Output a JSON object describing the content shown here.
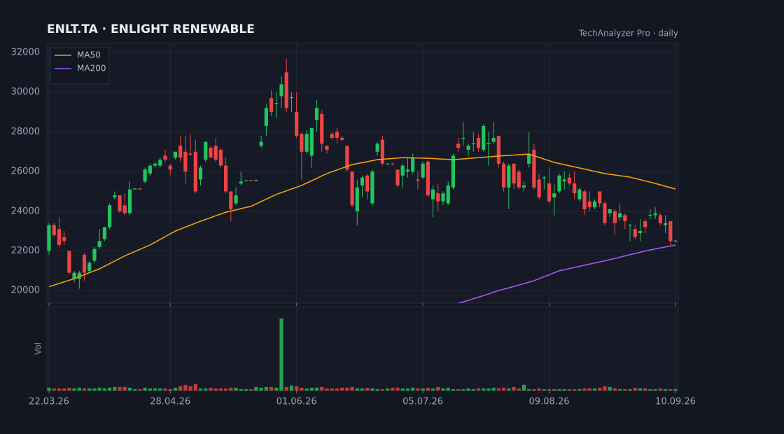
{
  "chart_data": {
    "type": "candlestick",
    "title": "ENLT.TA  ·  ENLIGHT RENEWABLE",
    "subtitle": "TechAnalyzer Pro · daily",
    "volume_label": "Vol",
    "legend": "upper left",
    "grid": true,
    "up_color": "#22c55e",
    "down_color": "#ef4444",
    "ylim": [
      19370,
      32460
    ],
    "yticks": [
      20000,
      22000,
      24000,
      26000,
      28000,
      30000,
      32000
    ],
    "xticks": [
      "22.03.26",
      "28.04.26",
      "01.06.26",
      "05.07.26",
      "09.08.26",
      "10.09.26"
    ],
    "x": [
      "22.03.26",
      "23.03.26",
      "24.03.26",
      "25.03.26",
      "26.03.26",
      "29.03.26",
      "30.03.26",
      "31.03.26",
      "01.04.26",
      "05.04.26",
      "06.04.26",
      "07.04.26",
      "12.04.26",
      "13.04.26",
      "14.04.26",
      "15.04.26",
      "16.04.26",
      "19.04.26",
      "20.04.26",
      "21.04.26",
      "22.04.26",
      "23.04.26",
      "26.04.26",
      "27.04.26",
      "28.04.26",
      "29.04.26",
      "30.04.26",
      "01.05.26",
      "03.05.26",
      "04.05.26",
      "05.05.26",
      "06.05.26",
      "07.05.26",
      "10.05.26",
      "11.05.26",
      "12.05.26",
      "13.05.26",
      "14.05.26",
      "17.05.26",
      "18.05.26",
      "19.05.26",
      "20.05.26",
      "21.05.26",
      "24.05.26",
      "25.05.26",
      "26.05.26",
      "27.05.26",
      "28.05.26",
      "31.05.26",
      "01.06.26",
      "02.06.26",
      "03.06.26",
      "04.06.26",
      "05.06.26",
      "07.06.26",
      "08.06.26",
      "09.06.26",
      "10.06.26",
      "11.06.26",
      "14.06.26",
      "15.06.26",
      "16.06.26",
      "17.06.26",
      "18.06.26",
      "21.06.26",
      "22.06.26",
      "23.06.26",
      "24.06.26",
      "25.06.26",
      "28.06.26",
      "29.06.26",
      "30.06.26",
      "01.07.26",
      "02.07.26",
      "05.07.26",
      "06.07.26",
      "07.07.26",
      "08.07.26",
      "09.07.26",
      "12.07.26",
      "13.07.26",
      "14.07.26",
      "15.07.26",
      "16.07.26",
      "19.07.26",
      "20.07.26",
      "21.07.26",
      "22.07.26",
      "23.07.26",
      "26.07.26",
      "27.07.26",
      "28.07.26",
      "29.07.26",
      "30.07.26",
      "02.08.26",
      "03.08.26",
      "04.08.26",
      "05.08.26",
      "06.08.26",
      "09.08.26",
      "10.08.26",
      "11.08.26",
      "12.08.26",
      "13.08.26",
      "16.08.26",
      "17.08.26",
      "18.08.26",
      "19.08.26",
      "20.08.26",
      "23.08.26",
      "24.08.26",
      "25.08.26",
      "26.08.26",
      "27.08.26",
      "30.08.26",
      "31.08.26",
      "01.09.26",
      "02.09.26",
      "03.09.26",
      "04.09.26",
      "06.09.26",
      "07.09.26",
      "08.09.26",
      "09.09.26",
      "10.09.26"
    ],
    "open": [
      22000,
      23300,
      23100,
      22700,
      22000,
      20600,
      20600,
      21800,
      21000,
      21500,
      22200,
      22600,
      23200,
      24700,
      24800,
      24300,
      23900,
      25100,
      25150,
      25500,
      25900,
      26300,
      26300,
      26800,
      26300,
      26700,
      27300,
      27000,
      26900,
      27000,
      25600,
      26600,
      27200,
      27300,
      27100,
      26300,
      25000,
      24400,
      25400,
      25550,
      25560,
      25550,
      27300,
      28300,
      29700,
      29400,
      29800,
      31000,
      29700,
      29000,
      27900,
      27000,
      26800,
      28600,
      28900,
      27300,
      27900,
      28000,
      27700,
      27300,
      26000,
      24000,
      25300,
      25800,
      24400,
      27000,
      27600,
      26400,
      26400,
      26100,
      25800,
      26000,
      26000,
      25600,
      25700,
      26500,
      24600,
      24900,
      24500,
      24400,
      25200,
      27400,
      27650,
      27100,
      27400,
      27700,
      27100,
      27400,
      27500,
      27800,
      26400,
      25200,
      26400,
      26000,
      25200,
      26400,
      27100,
      25600,
      25650,
      25400,
      24700,
      25000,
      25500,
      25700,
      25400,
      24600,
      25000,
      24500,
      24200,
      25000,
      24400,
      23900,
      24000,
      23700,
      23800,
      23300,
      23100,
      22900,
      23500,
      23800,
      23800,
      23800,
      23300,
      23500,
      22500
    ],
    "high": [
      23400,
      23400,
      23700,
      23000,
      22000,
      21000,
      21000,
      21900,
      21500,
      22200,
      23100,
      23200,
      24400,
      25000,
      24800,
      24900,
      25500,
      25150,
      25150,
      26200,
      26400,
      26500,
      26700,
      27100,
      26400,
      27000,
      27800,
      27800,
      27900,
      27600,
      26300,
      27500,
      27300,
      27700,
      27200,
      26700,
      25000,
      25200,
      26000,
      25580,
      25580,
      25600,
      27800,
      29400,
      30100,
      30000,
      30800,
      31700,
      30000,
      30000,
      28000,
      28100,
      28200,
      29600,
      29100,
      27300,
      28000,
      28200,
      27800,
      27300,
      26000,
      25600,
      25800,
      25900,
      26100,
      27500,
      27800,
      26420,
      26450,
      26100,
      26400,
      26700,
      26900,
      26000,
      26500,
      26600,
      25300,
      25400,
      25000,
      25500,
      26900,
      27700,
      28500,
      27400,
      28000,
      27900,
      28400,
      28000,
      28500,
      27800,
      26500,
      26400,
      26400,
      26100,
      25500,
      28000,
      27400,
      25900,
      25800,
      26200,
      25400,
      25900,
      26000,
      25900,
      26000,
      25200,
      25100,
      25000,
      24600,
      25000,
      24500,
      24100,
      24100,
      24400,
      23900,
      23350,
      23300,
      23600,
      23600,
      24100,
      24200,
      23900,
      23800,
      23500,
      22550
    ],
    "low": [
      21800,
      22700,
      22200,
      22300,
      20800,
      20400,
      20100,
      20500,
      20900,
      21400,
      22100,
      22500,
      23100,
      24600,
      23900,
      23800,
      23800,
      25100,
      25100,
      25400,
      25800,
      26200,
      26200,
      26500,
      25800,
      26600,
      26500,
      25400,
      26800,
      24900,
      25300,
      26500,
      26700,
      26500,
      26200,
      24900,
      23500,
      24300,
      25300,
      25540,
      25540,
      25500,
      27200,
      27800,
      28800,
      28700,
      29200,
      29000,
      29000,
      27700,
      25600,
      26900,
      26200,
      28000,
      27000,
      26900,
      27600,
      27400,
      27500,
      26000,
      24200,
      23300,
      24700,
      24600,
      24300,
      26800,
      26300,
      26380,
      26350,
      25200,
      25200,
      25700,
      25900,
      25100,
      25600,
      24700,
      23700,
      24000,
      24300,
      24300,
      25100,
      27000,
      27300,
      26800,
      27000,
      27000,
      27000,
      26300,
      27400,
      26200,
      25000,
      24100,
      25100,
      25100,
      25000,
      26200,
      25100,
      24600,
      25100,
      24400,
      23800,
      24900,
      25100,
      25300,
      24600,
      24500,
      23800,
      24000,
      24100,
      24200,
      23300,
      23700,
      22800,
      23500,
      23100,
      22500,
      22600,
      22500,
      22900,
      23600,
      23600,
      23300,
      22900,
      22300,
      22450
    ],
    "close": [
      23300,
      22800,
      22300,
      22500,
      20900,
      20900,
      20900,
      20900,
      21400,
      22100,
      22500,
      23200,
      24300,
      24800,
      24000,
      23900,
      25100,
      25150,
      25100,
      26100,
      26300,
      26400,
      26600,
      26600,
      26100,
      27000,
      26700,
      26000,
      26850,
      25000,
      26200,
      27500,
      26700,
      26600,
      26300,
      25000,
      24100,
      24800,
      25500,
      25560,
      25550,
      25560,
      27500,
      29200,
      29000,
      29450,
      30400,
      29200,
      29750,
      27800,
      27000,
      27900,
      28200,
      29200,
      27400,
      27100,
      27700,
      27700,
      27600,
      26100,
      24300,
      25200,
      25700,
      25000,
      26000,
      27400,
      26400,
      26400,
      26380,
      25300,
      26300,
      26100,
      26700,
      25550,
      26400,
      24800,
      25100,
      24500,
      24900,
      25300,
      26800,
      27200,
      27700,
      27300,
      27420,
      27200,
      28300,
      27450,
      27700,
      26400,
      25200,
      26300,
      25400,
      25200,
      25300,
      26900,
      25200,
      24700,
      25700,
      24500,
      24900,
      25800,
      25600,
      25400,
      24900,
      25100,
      24100,
      24200,
      24500,
      24400,
      23400,
      24100,
      23400,
      23900,
      23500,
      23320,
      22700,
      23000,
      23200,
      23820,
      23900,
      23400,
      23400,
      22500,
      22520
    ],
    "volume": [
      4,
      3,
      3,
      3,
      4,
      3,
      4,
      3,
      3,
      3,
      4,
      3,
      4,
      5,
      5,
      5,
      4,
      2,
      2,
      4,
      3,
      3,
      3,
      3,
      2,
      4,
      6,
      8,
      6,
      9,
      3,
      3,
      4,
      3,
      3,
      3,
      4,
      4,
      2,
      2,
      2,
      5,
      4,
      5,
      5,
      4,
      100,
      5,
      7,
      6,
      4,
      3,
      4,
      4,
      5,
      3,
      3,
      3,
      4,
      4,
      5,
      3,
      3,
      4,
      3,
      2,
      2,
      3,
      4,
      4,
      3,
      3,
      4,
      3,
      3,
      4,
      3,
      5,
      3,
      4,
      2,
      2,
      2,
      3,
      2,
      3,
      3,
      3,
      4,
      3,
      4,
      3,
      5,
      3,
      8,
      2,
      2,
      3,
      2,
      2,
      2,
      2,
      2,
      2,
      2,
      2,
      3,
      3,
      3,
      4,
      6,
      5,
      3,
      2,
      2,
      2,
      4,
      3,
      3,
      2,
      2,
      3,
      2,
      2,
      2
    ],
    "series": [
      {
        "name": "MA50",
        "color": "#f59e0b",
        "values": [
          20200,
          20280,
          20360,
          20440,
          20520,
          20600,
          20700,
          20800,
          20900,
          21000,
          21100,
          21230,
          21360,
          21490,
          21620,
          21750,
          21860,
          21970,
          22080,
          22190,
          22300,
          22440,
          22580,
          22720,
          22860,
          23000,
          23100,
          23200,
          23300,
          23400,
          23500,
          23590,
          23680,
          23770,
          23860,
          23950,
          24010,
          24070,
          24130,
          24190,
          24250,
          24370,
          24490,
          24610,
          24730,
          24850,
          24940,
          25030,
          25120,
          25210,
          25300,
          25420,
          25540,
          25660,
          25780,
          25900,
          25990,
          26080,
          26170,
          26260,
          26350,
          26400,
          26450,
          26500,
          26550,
          26600,
          26620,
          26640,
          26660,
          26680,
          26700,
          26694,
          26688,
          26682,
          26676,
          26670,
          26656,
          26642,
          26628,
          26614,
          26600,
          26620,
          26640,
          26660,
          26680,
          26700,
          26720,
          26740,
          26760,
          26780,
          26800,
          26816,
          26832,
          26848,
          26864,
          26880,
          26796,
          26712,
          26628,
          26544,
          26460,
          26404,
          26348,
          26292,
          26236,
          26180,
          26124,
          26068,
          26012,
          25956,
          25900,
          25864,
          25828,
          25792,
          25756,
          25720,
          25656,
          25592,
          25528,
          25464,
          25400,
          25330,
          25260,
          25190,
          25120
        ]
      },
      {
        "name": "MA200",
        "color": "#a855f7",
        "values": [
          null,
          null,
          null,
          null,
          null,
          null,
          null,
          null,
          null,
          null,
          null,
          null,
          null,
          null,
          null,
          null,
          null,
          null,
          null,
          null,
          null,
          null,
          null,
          null,
          null,
          null,
          null,
          null,
          null,
          null,
          null,
          null,
          null,
          null,
          null,
          null,
          null,
          null,
          null,
          null,
          null,
          null,
          null,
          null,
          null,
          null,
          null,
          null,
          null,
          null,
          null,
          null,
          null,
          null,
          null,
          null,
          null,
          null,
          null,
          null,
          null,
          null,
          null,
          null,
          null,
          null,
          null,
          null,
          null,
          null,
          null,
          null,
          null,
          null,
          null,
          null,
          null,
          null,
          null,
          null,
          null,
          19350,
          19430,
          19510,
          19590,
          19670,
          19750,
          19830,
          19920,
          20000,
          20070,
          20140,
          20210,
          20280,
          20350,
          20430,
          20500,
          20600,
          20700,
          20800,
          20900,
          21000,
          21055,
          21110,
          21165,
          21220,
          21280,
          21335,
          21390,
          21445,
          21500,
          21560,
          21620,
          21685,
          21750,
          21810,
          21870,
          21935,
          22000,
          22050,
          22100,
          22150,
          22200,
          22250,
          22300
        ]
      }
    ]
  }
}
